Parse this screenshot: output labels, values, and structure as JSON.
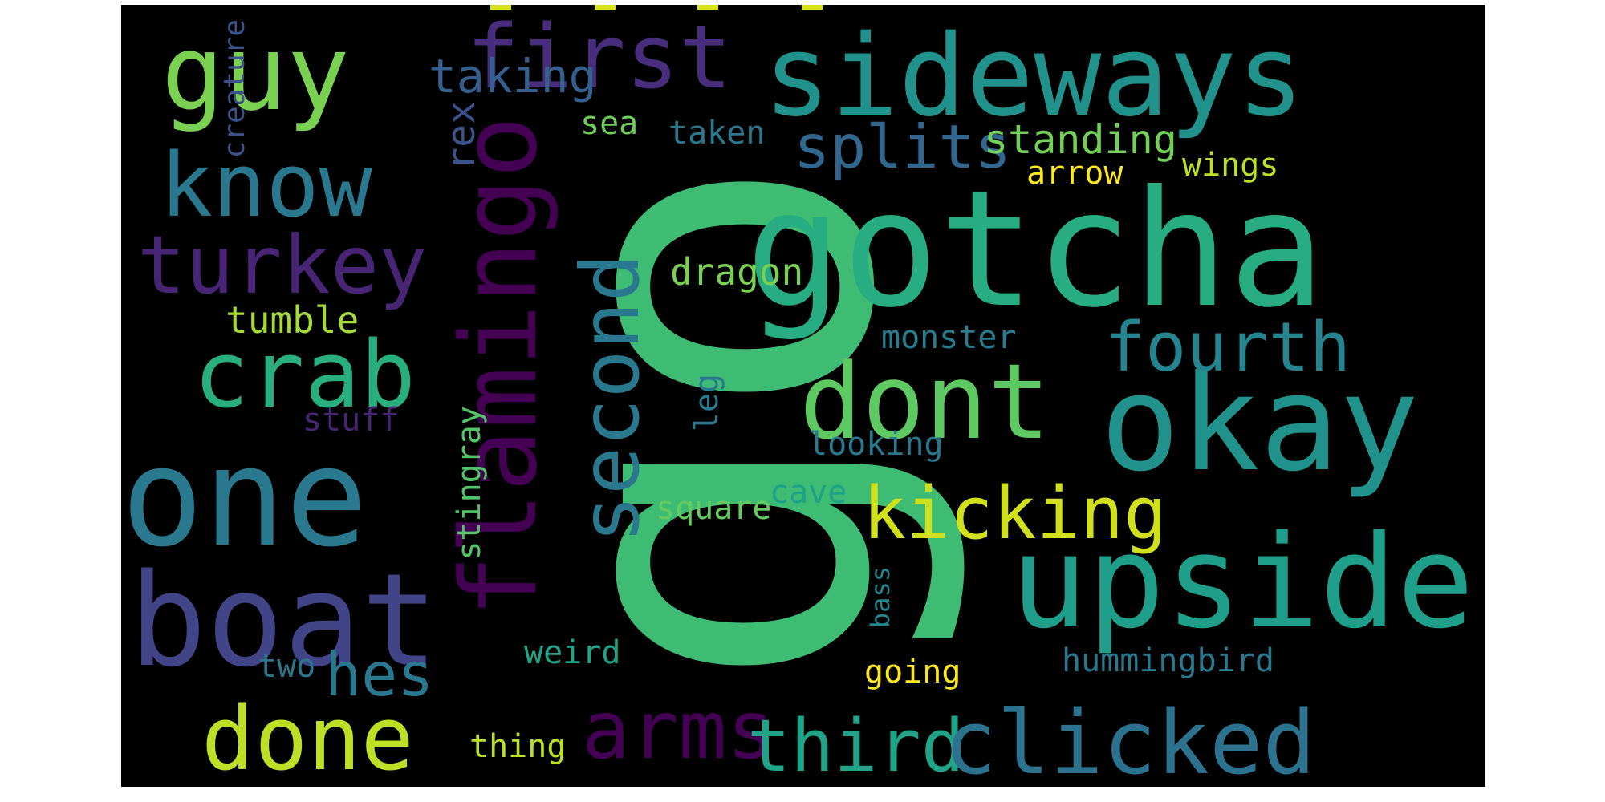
{
  "words": {
    "go": "go",
    "gotcha": "gotcha",
    "sideways": "sideways",
    "okay": "okay",
    "one": "one",
    "boat": "boat",
    "upside": "upside",
    "flamingo": "flamingo",
    "guy": "guy",
    "first": "first",
    "know": "know",
    "turkey": "turkey",
    "crab": "crab",
    "dont": "dont",
    "second": "second",
    "fourth": "fourth",
    "kicking": "kicking",
    "done": "done",
    "arms": "arms",
    "third": "third",
    "clicked": "clicked",
    "hes": "hes",
    "splits": "splits",
    "standing": "standing",
    "taking": "taking",
    "rex": "rex",
    "sea": "sea",
    "taken": "taken",
    "arrow": "arrow",
    "wings": "wings",
    "creature": "creature",
    "dragon": "dragon",
    "tumble": "tumble",
    "monster": "monster",
    "stuff": "stuff",
    "leg": "leg",
    "looking": "looking",
    "cave": "cave",
    "square": "square",
    "stingray": "stingray",
    "bass": "bass",
    "weird": "weird",
    "two": "two",
    "going": "going",
    "hummingbird": "hummingbird",
    "thing": "thing"
  },
  "colors": {
    "background": "#000000",
    "purple_dark": "#440154",
    "purple": "#482475",
    "indigo": "#414487",
    "blue": "#355f8d",
    "teal_blue": "#2a788e",
    "teal": "#21918c",
    "green_teal": "#22a884",
    "green": "#44bf70",
    "lime": "#7ad151",
    "yellow_green": "#bddf26",
    "yellow": "#fde725"
  }
}
